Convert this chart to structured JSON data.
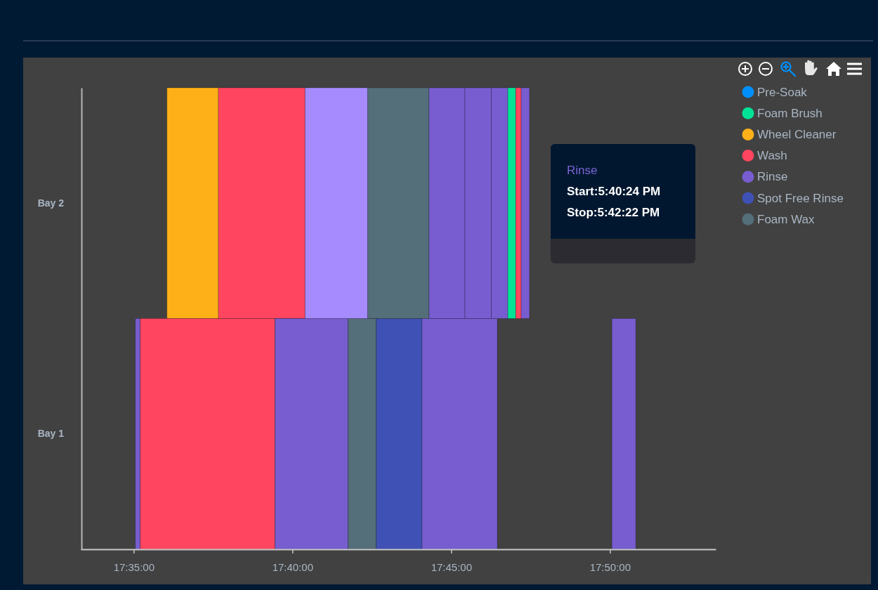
{
  "chart_data": {
    "type": "bar",
    "orientation": "horizontal",
    "categories": [
      "Bay 2",
      "Bay 1"
    ],
    "series": [
      {
        "name": "Pre-Soak",
        "color": "#008ffb",
        "values": [
          null,
          null
        ],
        "base": [
          null,
          null
        ]
      },
      {
        "name": "Foam Brush",
        "color": "#00e396",
        "values": [
          0.0042,
          null
        ],
        "base": [
          17.7797,
          null
        ]
      },
      {
        "name": "Wheel Cleaner",
        "color": "#feb019",
        "values": [
          0.027,
          null
        ],
        "base": [
          17.6008,
          null
        ]
      },
      {
        "name": "Wash",
        "color": "#ff4560",
        "values": [
          0.0455,
          0.0708
        ],
        "base": [
          17.6278,
          17.5867
        ]
      },
      {
        "name": "Rinse",
        "color": "#775dd0",
        "values": [
          0.0189,
          0.0025
        ],
        "base": [
          17.7383,
          17.5842
        ]
      },
      {
        "name": "Spot Free Rinse",
        "color": "#3f51b5",
        "values": [
          null,
          0.0241
        ],
        "base": [
          null,
          17.7106
        ]
      },
      {
        "name": "Foam Wax",
        "color": "#546e7a",
        "values": [
          0.0322,
          0.0148
        ],
        "base": [
          17.7061,
          17.6958
        ]
      },
      {
        "color": "#775dd0",
        "values": [
          0.0139,
          0.0383
        ],
        "base": [
          17.7572,
          17.6575
        ]
      },
      {
        "color": "#775dd0",
        "values": [
          0.0086,
          0.0395
        ],
        "base": [
          17.7711,
          17.7347
        ]
      },
      {
        "color": "#775dd0",
        "values": [
          0.0044,
          0.0125
        ],
        "base": [
          17.7867,
          17.8344
        ]
      },
      {
        "color": "#ff4560",
        "values": [
          0.0028,
          null
        ],
        "base": [
          17.7839,
          null
        ]
      },
      {
        "color": "#a68bff",
        "values": [
          0.0328,
          null
        ],
        "base": [
          17.6733,
          null
        ]
      }
    ],
    "xlim": [
      17.555556,
      17.888889
    ],
    "xticks": [
      {
        "value": 17.583333,
        "label": "17:35:00"
      },
      {
        "value": 17.666667,
        "label": "17:40:00"
      },
      {
        "value": 17.75,
        "label": "17:45:00"
      },
      {
        "value": 17.833333,
        "label": "17:50:00"
      }
    ],
    "legend": "top right",
    "annotations": [
      "Rinse",
      "Start:5:40:24 PM",
      "Stop:5:42:22 PM"
    ]
  }
}
